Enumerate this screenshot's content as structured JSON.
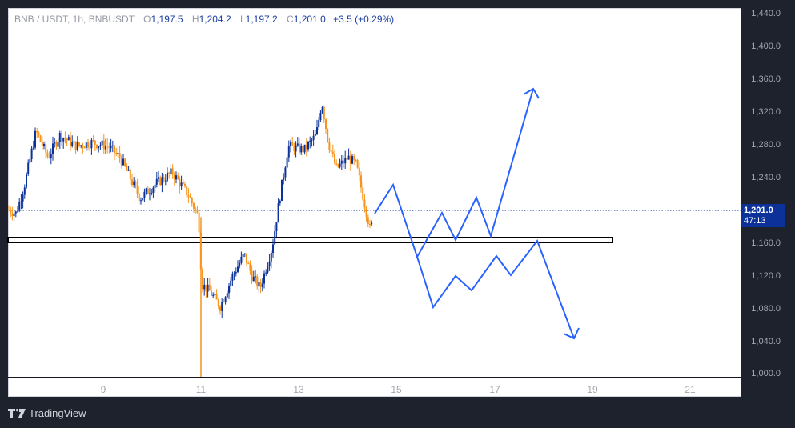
{
  "header": {
    "symbol": "BNB / USDT, 1h, BNBUSDT",
    "open_label": "O",
    "open": "1,197.5",
    "high_label": "H",
    "high": "1,204.2",
    "low_label": "L",
    "low": "1,197.2",
    "close_label": "C",
    "close": "1,201.0",
    "change": "+3.5 (+0.29%)"
  },
  "price_badge": {
    "price": "1,201.0",
    "countdown": "47:13"
  },
  "brand": {
    "name": "TradingView"
  },
  "colors": {
    "up": "#0c3299",
    "down": "#f7931a",
    "projection": "#2962ff",
    "zone": "#000000",
    "background": "#ffffff",
    "frame": "#1e222d"
  },
  "chart_data": {
    "type": "candlestick",
    "title": "BNB / USDT, 1h, BNBUSDT",
    "ohlc_last": {
      "open": 1197.5,
      "high": 1204.2,
      "low": 1197.2,
      "close": 1201.0,
      "change": 3.5,
      "change_pct": 0.29
    },
    "y_ticks": [
      "1,440.0",
      "1,400.0",
      "1,360.0",
      "1,320.0",
      "1,280.0",
      "1,240.0",
      "1,160.0",
      "1,120.0",
      "1,080.0",
      "1,040.0",
      "1,000.0"
    ],
    "x_ticks": [
      "9",
      "11",
      "13",
      "15",
      "17",
      "19",
      "21"
    ],
    "ylim": [
      1000,
      1440
    ],
    "approx_price_path": [
      {
        "x": "8",
        "price": 1220
      },
      {
        "x": "8.5",
        "price": 1320
      },
      {
        "x": "9",
        "price": 1310
      },
      {
        "x": "9.5",
        "price": 1300
      },
      {
        "x": "10",
        "price": 1230
      },
      {
        "x": "10.5",
        "price": 1270
      },
      {
        "x": "11",
        "price": 1200
      },
      {
        "x": "11",
        "price_low_wick": 1000
      },
      {
        "x": "11.5",
        "price": 1120
      },
      {
        "x": "12",
        "price": 1180
      },
      {
        "x": "12.5",
        "price": 1240
      },
      {
        "x": "13",
        "price": 1310
      },
      {
        "x": "13.5",
        "price": 1370
      },
      {
        "x": "14",
        "price": 1290
      },
      {
        "x": "14.5",
        "price": 1201
      }
    ],
    "support_zone": {
      "from": 1162,
      "to": 1168
    },
    "current_price_line": 1201.0,
    "projections": [
      {
        "name": "bullish",
        "points": [
          1201,
          1230,
          1142,
          1197,
          1162,
          1215,
          1167,
          1348
        ],
        "arrow": "up"
      },
      {
        "name": "bearish",
        "points": [
          1142,
          1080,
          1120,
          1102,
          1142,
          1120,
          1165,
          1043
        ],
        "arrow": "down"
      }
    ]
  }
}
